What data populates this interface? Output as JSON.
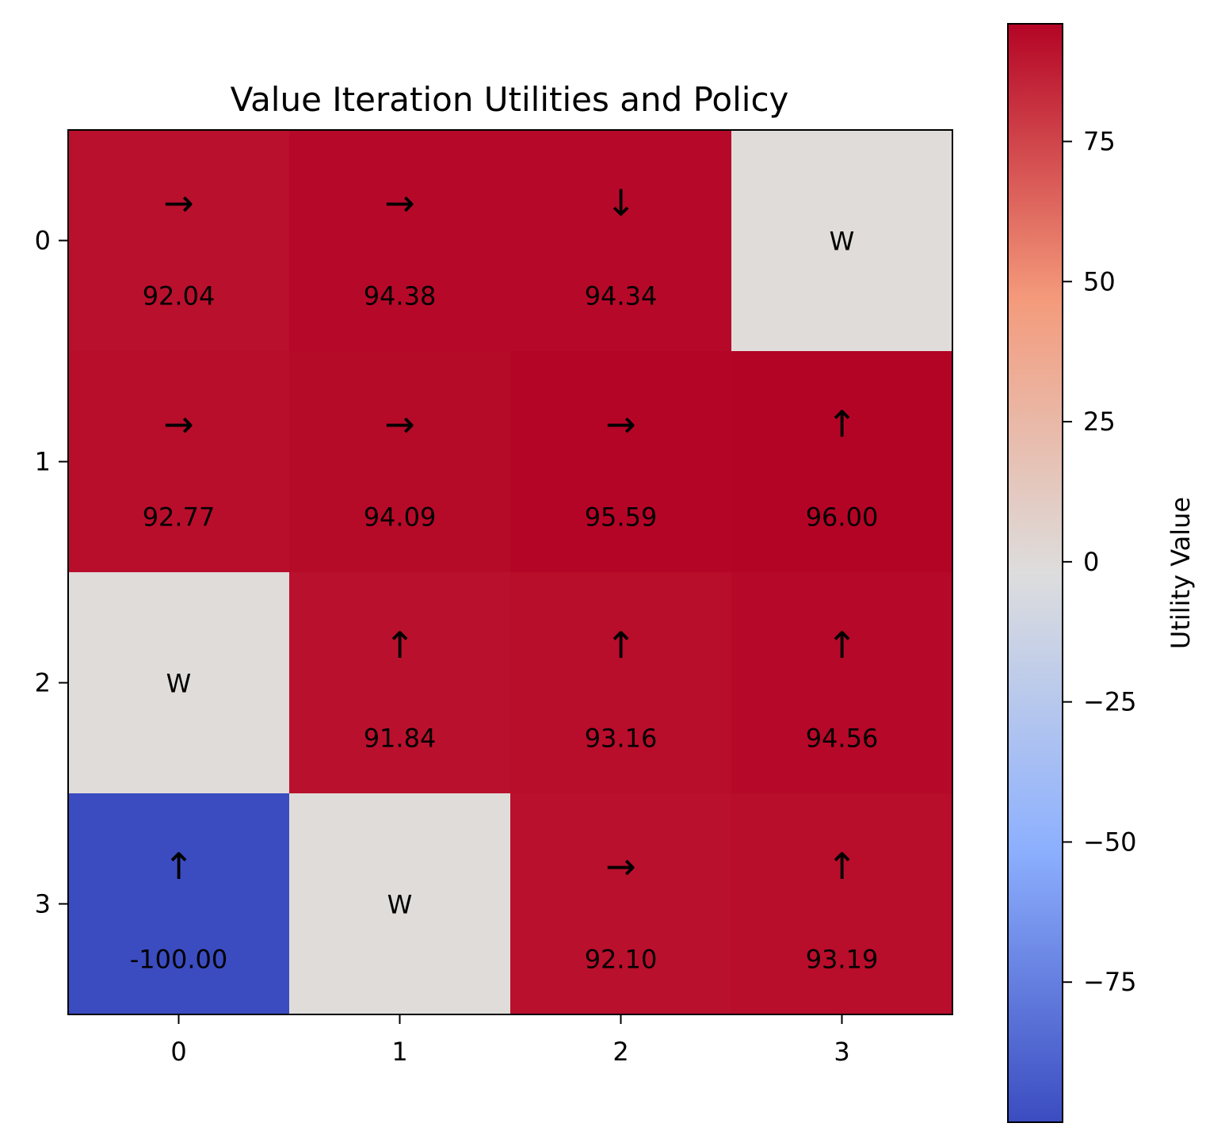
{
  "chart_data": {
    "type": "heatmap",
    "title": "Value Iteration Utilities and Policy",
    "x_ticks": [
      "0",
      "1",
      "2",
      "3"
    ],
    "y_ticks": [
      "0",
      "1",
      "2",
      "3"
    ],
    "grid": false,
    "colormap": "coolwarm",
    "colorbar": {
      "label": "Utility Value",
      "ticks": [
        75,
        50,
        25,
        0,
        -25,
        -50,
        -75
      ],
      "tick_labels": [
        "75",
        "50",
        "25",
        "0",
        "−25",
        "−50",
        "−75"
      ],
      "range": [
        -100,
        96
      ],
      "position": "right"
    },
    "cells": [
      [
        {
          "value": 92.04,
          "label": "92.04",
          "policy": "→"
        },
        {
          "value": 94.38,
          "label": "94.38",
          "policy": "→"
        },
        {
          "value": 94.34,
          "label": "94.34",
          "policy": "↓"
        },
        {
          "value": 0,
          "label": "W",
          "wall": true
        }
      ],
      [
        {
          "value": 92.77,
          "label": "92.77",
          "policy": "→"
        },
        {
          "value": 94.09,
          "label": "94.09",
          "policy": "→"
        },
        {
          "value": 95.59,
          "label": "95.59",
          "policy": "→"
        },
        {
          "value": 96.0,
          "label": "96.00",
          "policy": "↑"
        }
      ],
      [
        {
          "value": 0,
          "label": "W",
          "wall": true
        },
        {
          "value": 91.84,
          "label": "91.84",
          "policy": "↑"
        },
        {
          "value": 93.16,
          "label": "93.16",
          "policy": "↑"
        },
        {
          "value": 94.56,
          "label": "94.56",
          "policy": "↑"
        }
      ],
      [
        {
          "value": -100.0,
          "label": "-100.00",
          "policy": "↑"
        },
        {
          "value": 0,
          "label": "W",
          "wall": true
        },
        {
          "value": 92.1,
          "label": "92.10",
          "policy": "→"
        },
        {
          "value": 93.19,
          "label": "93.19",
          "policy": "↑"
        }
      ]
    ]
  }
}
